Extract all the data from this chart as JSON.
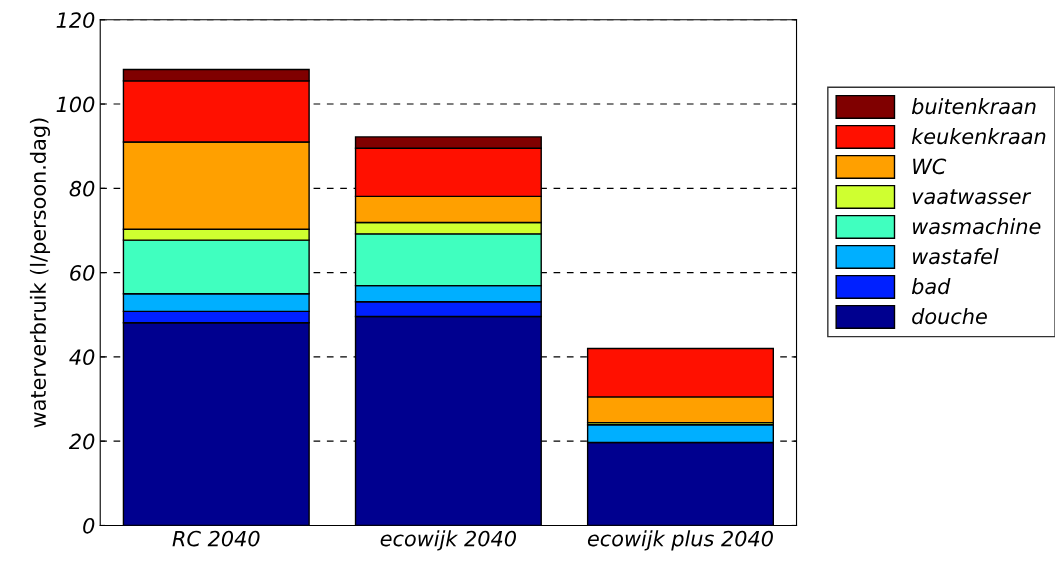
{
  "chart_data": {
    "type": "bar",
    "stacked": true,
    "ylabel": "waterverbruik (l/persoon.dag)",
    "categories": [
      "RC 2040",
      "ecowijk 2040",
      "ecowijk plus 2040"
    ],
    "series": [
      {
        "name": "douche",
        "color": "#00008f",
        "values": [
          48.1,
          49.6,
          19.7
        ]
      },
      {
        "name": "bad",
        "color": "#0020ff",
        "values": [
          2.7,
          3.5,
          null
        ]
      },
      {
        "name": "wastafel",
        "color": "#00afff",
        "values": [
          4.2,
          3.8,
          4.2
        ]
      },
      {
        "name": "wasmachine",
        "color": "#40ffbf",
        "values": [
          12.7,
          12.3,
          null
        ]
      },
      {
        "name": "vaatwasser",
        "color": "#cfff30",
        "values": [
          2.6,
          2.7,
          0.5
        ]
      },
      {
        "name": "WC",
        "color": "#ffa000",
        "values": [
          20.7,
          6.2,
          6.1
        ]
      },
      {
        "name": "keukenkraan",
        "color": "#ff1000",
        "values": [
          14.5,
          11.4,
          11.5
        ]
      },
      {
        "name": "buitenkraan",
        "color": "#800000",
        "values": [
          2.7,
          2.7,
          null
        ]
      }
    ],
    "ylim": [
      0,
      120
    ],
    "yticks": [
      0,
      20,
      40,
      60,
      80,
      100,
      120
    ],
    "grid": "y",
    "legend": "right"
  }
}
